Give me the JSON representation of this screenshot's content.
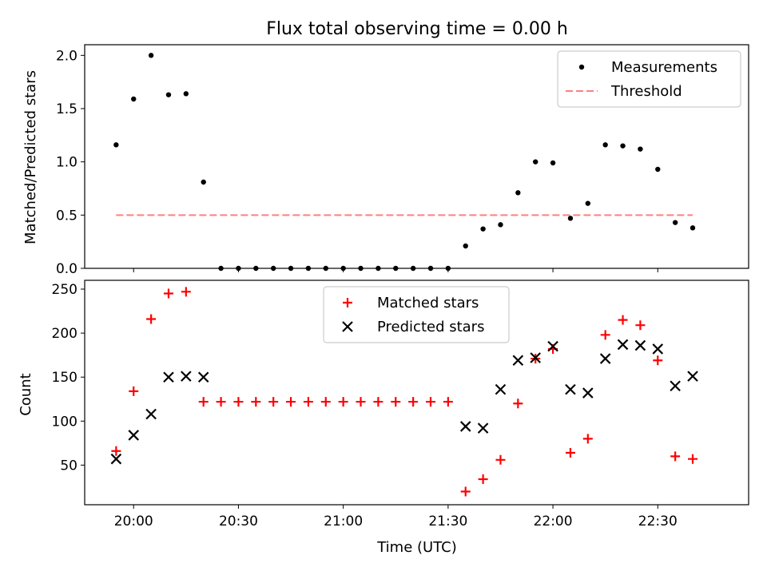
{
  "figure": {
    "title": "Flux total observing time = 0.00 h",
    "xlabel": "Time (UTC)"
  },
  "chart_data": [
    {
      "type": "scatter",
      "ylabel": "Matched/Predicted stars",
      "ylim": [
        0,
        2.1
      ],
      "xlim": [
        "19:46",
        "22:56"
      ],
      "yticks": [
        "0.0",
        "0.5",
        "1.0",
        "1.5",
        "2.0"
      ],
      "legend_position": "top-right",
      "x": [
        "19:55",
        "20:00",
        "20:05",
        "20:10",
        "20:15",
        "20:20",
        "20:25",
        "20:30",
        "20:35",
        "20:40",
        "20:45",
        "20:50",
        "20:55",
        "21:00",
        "21:05",
        "21:10",
        "21:15",
        "21:20",
        "21:25",
        "21:30",
        "21:35",
        "21:40",
        "21:45",
        "21:50",
        "21:55",
        "22:00",
        "22:05",
        "22:10",
        "22:15",
        "22:20",
        "22:25",
        "22:30",
        "22:35",
        "22:40"
      ],
      "series": [
        {
          "name": "Measurements",
          "color": "#000000",
          "marker": "dot",
          "values": [
            1.16,
            1.59,
            2.0,
            1.63,
            1.64,
            0.81,
            0,
            0,
            0,
            0,
            0,
            0,
            0,
            0,
            0,
            0,
            0,
            0,
            0,
            0,
            0.21,
            0.37,
            0.41,
            0.71,
            1.0,
            0.99,
            0.47,
            0.61,
            1.16,
            1.15,
            1.12,
            0.93,
            0.43,
            0.38
          ]
        },
        {
          "name": "Threshold",
          "color": "#ff7f7f",
          "style": "dashed",
          "x": [
            "19:55",
            "22:40"
          ],
          "values": [
            0.5,
            0.5
          ]
        }
      ]
    },
    {
      "type": "scatter",
      "ylabel": "Count",
      "ylim": [
        5,
        260
      ],
      "xlim": [
        "19:46",
        "22:56"
      ],
      "yticks": [
        "50",
        "100",
        "150",
        "200",
        "250"
      ],
      "xticks": [
        "20:00",
        "20:30",
        "21:00",
        "21:30",
        "22:00",
        "22:30"
      ],
      "legend_position": "top-center",
      "series": [
        {
          "name": "Matched stars",
          "color": "#ff0000",
          "marker": "plus",
          "x": [
            "19:55",
            "20:00",
            "20:05",
            "20:10",
            "20:15",
            "20:20",
            "20:25",
            "20:30",
            "20:35",
            "20:40",
            "20:45",
            "20:50",
            "20:55",
            "21:00",
            "21:05",
            "21:10",
            "21:15",
            "21:20",
            "21:25",
            "21:30",
            "21:35",
            "21:40",
            "21:45",
            "21:50",
            "21:55",
            "22:00",
            "22:05",
            "22:10",
            "22:15",
            "22:20",
            "22:25",
            "22:30",
            "22:35",
            "22:40"
          ],
          "values": [
            66,
            134,
            216,
            245,
            247,
            122,
            122,
            122,
            122,
            122,
            122,
            122,
            122,
            122,
            122,
            122,
            122,
            122,
            122,
            122,
            20,
            34,
            56,
            120,
            171,
            182,
            64,
            80,
            198,
            215,
            209,
            169,
            60,
            57
          ]
        },
        {
          "name": "Predicted stars",
          "color": "#000000",
          "marker": "x",
          "x": [
            "19:55",
            "20:00",
            "20:05",
            "20:10",
            "20:15",
            "20:20",
            "21:35",
            "21:40",
            "21:45",
            "21:50",
            "21:55",
            "22:00",
            "22:05",
            "22:10",
            "22:15",
            "22:20",
            "22:25",
            "22:30",
            "22:35",
            "22:40"
          ],
          "values": [
            57,
            84,
            108,
            150,
            151,
            150,
            94,
            92,
            136,
            169,
            172,
            185,
            136,
            132,
            171,
            187,
            186,
            182,
            140,
            151
          ]
        }
      ]
    }
  ]
}
